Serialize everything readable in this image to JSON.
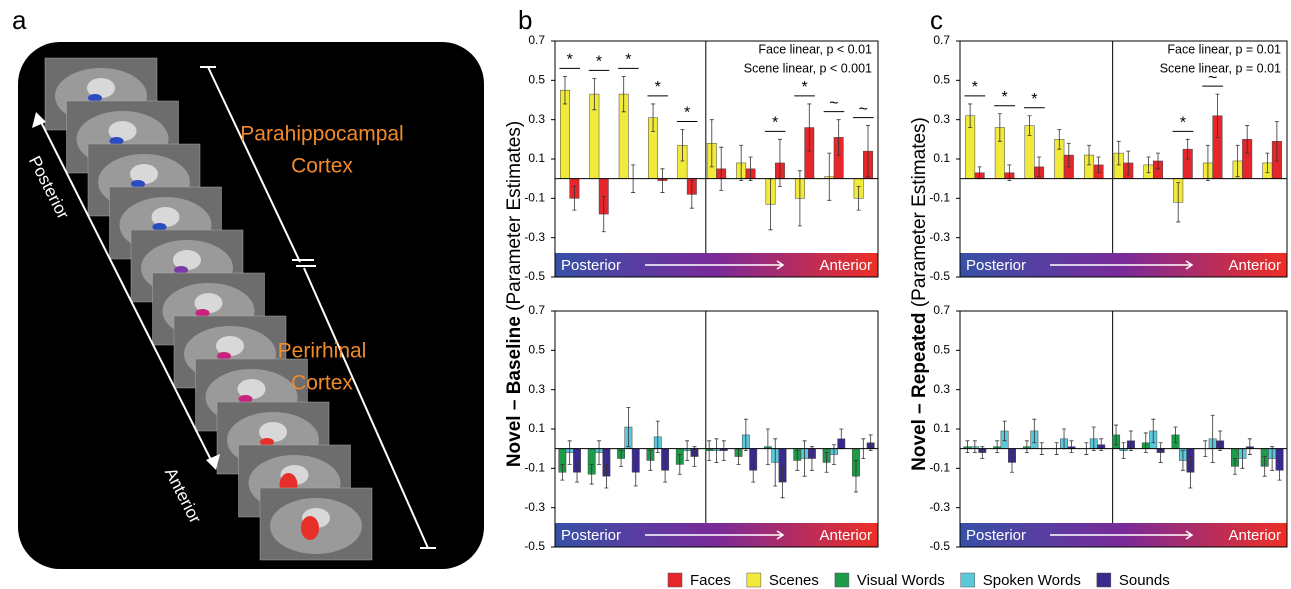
{
  "panel_letters": [
    "a",
    "b",
    "c"
  ],
  "panel_a": {
    "direction_labels": [
      "Posterior",
      "Anterior"
    ],
    "region_labels": [
      [
        "Parahippocampal",
        "Cortex"
      ],
      [
        "Perirhinal",
        "Cortex"
      ]
    ]
  },
  "chart_data": [
    {
      "type": "bar",
      "ylabel": "Novel – Baseline",
      "ylabel_note": "(Parameter Estimates)",
      "categories": [
        null,
        null,
        null,
        null,
        null,
        null,
        null,
        null,
        null,
        null,
        null
      ],
      "ylim": [
        -0.5,
        0.7
      ],
      "yticks": [
        -0.5,
        -0.3,
        -0.1,
        0.1,
        0.3,
        0.5,
        0.7
      ],
      "annotations": [
        "Face linear, p < 0.01",
        "Scene linear, p < 0.001"
      ],
      "gradient_labels": [
        "Posterior",
        "Anterior"
      ],
      "significance": [
        "*",
        "*",
        "*",
        "*",
        "*",
        null,
        null,
        "*",
        "*",
        "~",
        "~"
      ],
      "series": [
        {
          "name": "Scenes",
          "color": "#f2ea3a",
          "values": [
            0.45,
            0.43,
            0.43,
            0.31,
            0.17,
            0.18,
            0.08,
            -0.13,
            -0.1,
            0.01,
            -0.1
          ],
          "errors": [
            0.07,
            0.08,
            0.09,
            0.07,
            0.08,
            0.12,
            0.09,
            0.13,
            0.14,
            0.12,
            0.06
          ]
        },
        {
          "name": "Faces",
          "color": "#e5262b",
          "values": [
            -0.1,
            -0.18,
            0.0,
            -0.01,
            -0.08,
            0.05,
            0.05,
            0.08,
            0.26,
            0.21,
            0.14
          ],
          "errors": [
            0.06,
            0.09,
            0.07,
            0.06,
            0.07,
            0.11,
            0.06,
            0.12,
            0.12,
            0.09,
            0.13
          ]
        }
      ]
    },
    {
      "type": "bar",
      "categories": [
        null,
        null,
        null,
        null,
        null,
        null,
        null,
        null,
        null,
        null,
        null
      ],
      "ylim": [
        -0.5,
        0.7
      ],
      "yticks": [
        -0.5,
        -0.3,
        -0.1,
        0.1,
        0.3,
        0.5,
        0.7
      ],
      "gradient_labels": [
        "Posterior",
        "Anterior"
      ],
      "series": [
        {
          "name": "Visual Words",
          "color": "#1d9a4a",
          "values": [
            -0.12,
            -0.13,
            -0.05,
            -0.06,
            -0.08,
            -0.01,
            -0.04,
            0.01,
            -0.06,
            -0.07,
            -0.14
          ],
          "errors": [
            0.04,
            0.05,
            0.04,
            0.05,
            0.05,
            0.05,
            0.04,
            0.09,
            0.05,
            0.05,
            0.08
          ]
        },
        {
          "name": "Spoken Words",
          "color": "#5cc8dc",
          "values": [
            -0.02,
            -0.02,
            0.11,
            0.06,
            -0.01,
            -0.01,
            0.07,
            -0.07,
            -0.05,
            -0.03,
            0.0
          ],
          "errors": [
            0.06,
            0.06,
            0.1,
            0.08,
            0.05,
            0.06,
            0.08,
            0.12,
            0.09,
            0.05,
            0.05
          ]
        },
        {
          "name": "Sounds",
          "color": "#3a2a8f",
          "values": [
            -0.12,
            -0.14,
            -0.12,
            -0.11,
            -0.04,
            -0.01,
            -0.11,
            -0.17,
            -0.05,
            0.05,
            0.03
          ],
          "errors": [
            0.05,
            0.06,
            0.07,
            0.06,
            0.05,
            0.05,
            0.06,
            0.08,
            0.06,
            0.05,
            0.04
          ]
        }
      ]
    },
    {
      "type": "bar",
      "ylabel": "Novel – Repeated",
      "ylabel_note": "(Parameter Estimates)",
      "categories": [
        null,
        null,
        null,
        null,
        null,
        null,
        null,
        null,
        null,
        null,
        null
      ],
      "ylim": [
        -0.5,
        0.7
      ],
      "yticks": [
        -0.5,
        -0.3,
        -0.1,
        0.1,
        0.3,
        0.5,
        0.7
      ],
      "annotations": [
        "Face linear, p = 0.01",
        "Scene linear, p = 0.01"
      ],
      "gradient_labels": [
        "Posterior",
        "Anterior"
      ],
      "significance": [
        "*",
        "*",
        "*",
        null,
        null,
        null,
        null,
        "*",
        "~",
        null,
        null
      ],
      "series": [
        {
          "name": "Scenes",
          "color": "#f2ea3a",
          "values": [
            0.32,
            0.26,
            0.27,
            0.2,
            0.12,
            0.13,
            0.07,
            -0.12,
            0.08,
            0.09,
            0.08
          ],
          "errors": [
            0.06,
            0.07,
            0.05,
            0.05,
            0.05,
            0.06,
            0.04,
            0.1,
            0.09,
            0.08,
            0.05
          ]
        },
        {
          "name": "Faces",
          "color": "#e5262b",
          "values": [
            0.03,
            0.03,
            0.06,
            0.12,
            0.07,
            0.08,
            0.09,
            0.15,
            0.32,
            0.2,
            0.19
          ],
          "errors": [
            0.03,
            0.04,
            0.05,
            0.06,
            0.04,
            0.06,
            0.04,
            0.05,
            0.11,
            0.07,
            0.1
          ]
        }
      ]
    },
    {
      "type": "bar",
      "categories": [
        null,
        null,
        null,
        null,
        null,
        null,
        null,
        null,
        null,
        null,
        null
      ],
      "ylim": [
        -0.5,
        0.7
      ],
      "yticks": [
        -0.5,
        -0.3,
        -0.1,
        0.1,
        0.3,
        0.5,
        0.7
      ],
      "gradient_labels": [
        "Posterior",
        "Anterior"
      ],
      "series": [
        {
          "name": "Visual Words",
          "color": "#1d9a4a",
          "values": [
            0.01,
            0.01,
            0.01,
            0.0,
            0.0,
            0.07,
            0.03,
            0.07,
            0.0,
            -0.09,
            -0.09
          ],
          "errors": [
            0.03,
            0.03,
            0.03,
            0.03,
            0.03,
            0.05,
            0.05,
            0.04,
            0.04,
            0.04,
            0.05
          ]
        },
        {
          "name": "Spoken Words",
          "color": "#5cc8dc",
          "values": [
            0.01,
            0.09,
            0.09,
            0.05,
            0.05,
            -0.01,
            0.09,
            -0.06,
            0.05,
            -0.05,
            -0.05
          ],
          "errors": [
            0.03,
            0.05,
            0.06,
            0.05,
            0.06,
            0.04,
            0.06,
            0.05,
            0.12,
            0.05,
            0.06
          ]
        },
        {
          "name": "Sounds",
          "color": "#3a2a8f",
          "values": [
            -0.02,
            -0.07,
            0.0,
            0.01,
            0.02,
            0.04,
            -0.02,
            -0.12,
            0.04,
            0.01,
            -0.11
          ],
          "errors": [
            0.03,
            0.05,
            0.03,
            0.03,
            0.03,
            0.05,
            0.05,
            0.08,
            0.05,
            0.04,
            0.05
          ]
        }
      ]
    }
  ]
}
